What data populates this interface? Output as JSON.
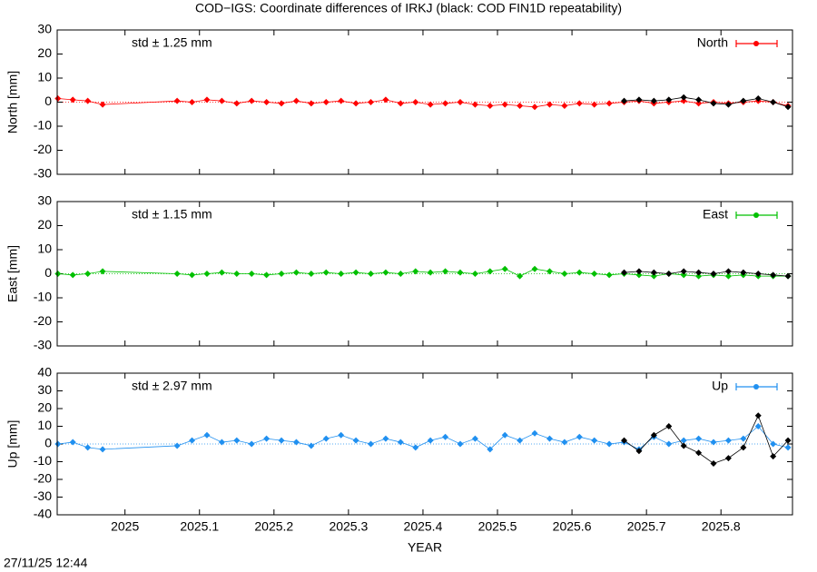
{
  "title": "COD−IGS: Coordinate differences of IRKJ (black: COD FIN1D repeatability)",
  "timestamp": "27/11/25 12:44",
  "chart_data": [
    {
      "type": "line",
      "ylabel": "North [mm]",
      "annotation": "std ± 1.25 mm",
      "xlim": [
        2024.909,
        2025.896
      ],
      "xticks": [
        2025,
        2025.1,
        2025.2,
        2025.3,
        2025.4,
        2025.5,
        2025.6,
        2025.7,
        2025.8
      ],
      "ylim": [
        -30,
        30
      ],
      "yticks": [
        -30,
        -20,
        -10,
        0,
        10,
        20,
        30
      ],
      "series": [
        {
          "name": "North",
          "color": "#ff0000",
          "x": [
            2024.91,
            2024.93,
            2024.95,
            2024.97,
            2025.07,
            2025.09,
            2025.11,
            2025.13,
            2025.15,
            2025.17,
            2025.19,
            2025.21,
            2025.23,
            2025.25,
            2025.27,
            2025.29,
            2025.31,
            2025.33,
            2025.35,
            2025.37,
            2025.39,
            2025.41,
            2025.43,
            2025.45,
            2025.47,
            2025.49,
            2025.51,
            2025.53,
            2025.55,
            2025.57,
            2025.59,
            2025.61,
            2025.63,
            2025.65,
            2025.67,
            2025.69,
            2025.71,
            2025.73,
            2025.75,
            2025.77,
            2025.79,
            2025.81,
            2025.83,
            2025.85,
            2025.87,
            2025.89
          ],
          "values": [
            1.5,
            1,
            0.5,
            -1,
            0.5,
            0,
            1,
            0.5,
            -0.5,
            0.5,
            0,
            -0.5,
            0.5,
            -0.5,
            0,
            0.5,
            -0.5,
            0,
            1,
            -0.5,
            0,
            -1,
            -0.5,
            0,
            -1,
            -1.5,
            -1,
            -1.5,
            -2,
            -1,
            -1.5,
            -0.5,
            -1,
            -0.5,
            0,
            0.5,
            -0.5,
            0,
            0.5,
            -0.5,
            0,
            -0.5,
            0,
            0.5,
            0,
            -1.5
          ]
        },
        {
          "color": "#000000",
          "x": [
            2025.67,
            2025.69,
            2025.71,
            2025.73,
            2025.75,
            2025.77,
            2025.79,
            2025.81,
            2025.83,
            2025.85,
            2025.87,
            2025.89
          ],
          "values": [
            0.5,
            1,
            0.5,
            1,
            2,
            1,
            -0.5,
            -1,
            0.5,
            1.5,
            0,
            -2
          ]
        }
      ]
    },
    {
      "type": "line",
      "ylabel": "East [mm]",
      "annotation": "std ± 1.15 mm",
      "xlim": [
        2024.909,
        2025.896
      ],
      "xticks": [
        2025,
        2025.1,
        2025.2,
        2025.3,
        2025.4,
        2025.5,
        2025.6,
        2025.7,
        2025.8
      ],
      "ylim": [
        -30,
        30
      ],
      "yticks": [
        -30,
        -20,
        -10,
        0,
        10,
        20,
        30
      ],
      "series": [
        {
          "name": "East",
          "color": "#00c000",
          "x": [
            2024.91,
            2024.93,
            2024.95,
            2024.97,
            2025.07,
            2025.09,
            2025.11,
            2025.13,
            2025.15,
            2025.17,
            2025.19,
            2025.21,
            2025.23,
            2025.25,
            2025.27,
            2025.29,
            2025.31,
            2025.33,
            2025.35,
            2025.37,
            2025.39,
            2025.41,
            2025.43,
            2025.45,
            2025.47,
            2025.49,
            2025.51,
            2025.53,
            2025.55,
            2025.57,
            2025.59,
            2025.61,
            2025.63,
            2025.65,
            2025.67,
            2025.69,
            2025.71,
            2025.73,
            2025.75,
            2025.77,
            2025.79,
            2025.81,
            2025.83,
            2025.85,
            2025.87,
            2025.89
          ],
          "values": [
            0,
            -0.5,
            0,
            1,
            0,
            -0.5,
            0,
            0.5,
            0,
            0,
            -0.5,
            0,
            0.5,
            0,
            0.5,
            0,
            0.5,
            0,
            0.5,
            0,
            1,
            0.5,
            1,
            0.5,
            0,
            1,
            2,
            -1,
            2,
            1,
            0,
            0.5,
            0,
            -0.5,
            0,
            -0.5,
            -1,
            0,
            -0.5,
            -1,
            -0.5,
            -1,
            -0.5,
            -1,
            -1,
            -1
          ]
        },
        {
          "color": "#000000",
          "x": [
            2025.67,
            2025.69,
            2025.71,
            2025.73,
            2025.75,
            2025.77,
            2025.79,
            2025.81,
            2025.83,
            2025.85,
            2025.87,
            2025.89
          ],
          "values": [
            0.5,
            1,
            0.5,
            0,
            1,
            0.5,
            0,
            1,
            0.5,
            0,
            -0.5,
            -1
          ]
        }
      ]
    },
    {
      "type": "line",
      "ylabel": "Up [mm]",
      "annotation": "std ± 2.97 mm",
      "xlabel": "YEAR",
      "xlim": [
        2024.909,
        2025.896
      ],
      "xticks": [
        2025,
        2025.1,
        2025.2,
        2025.3,
        2025.4,
        2025.5,
        2025.6,
        2025.7,
        2025.8
      ],
      "ylim": [
        -40,
        40
      ],
      "yticks": [
        -40,
        -30,
        -20,
        -10,
        0,
        10,
        20,
        30,
        40
      ],
      "series": [
        {
          "name": "Up",
          "color": "#2090f0",
          "x": [
            2024.91,
            2024.93,
            2024.95,
            2024.97,
            2025.07,
            2025.09,
            2025.11,
            2025.13,
            2025.15,
            2025.17,
            2025.19,
            2025.21,
            2025.23,
            2025.25,
            2025.27,
            2025.29,
            2025.31,
            2025.33,
            2025.35,
            2025.37,
            2025.39,
            2025.41,
            2025.43,
            2025.45,
            2025.47,
            2025.49,
            2025.51,
            2025.53,
            2025.55,
            2025.57,
            2025.59,
            2025.61,
            2025.63,
            2025.65,
            2025.67,
            2025.69,
            2025.71,
            2025.73,
            2025.75,
            2025.77,
            2025.79,
            2025.81,
            2025.83,
            2025.85,
            2025.87,
            2025.89
          ],
          "values": [
            0,
            1,
            -2,
            -3,
            -1,
            2,
            5,
            1,
            2,
            0,
            3,
            2,
            1,
            -1,
            3,
            5,
            2,
            0,
            3,
            1,
            -2,
            2,
            4,
            0,
            3,
            -3,
            5,
            2,
            6,
            3,
            1,
            4,
            2,
            0,
            1,
            -3,
            4,
            0,
            2,
            3,
            1,
            2,
            3,
            10,
            0,
            -2
          ]
        },
        {
          "color": "#000000",
          "x": [
            2025.67,
            2025.69,
            2025.71,
            2025.73,
            2025.75,
            2025.77,
            2025.79,
            2025.81,
            2025.83,
            2025.85,
            2025.87,
            2025.89
          ],
          "values": [
            2,
            -4,
            5,
            10,
            -1,
            -5,
            -11,
            -8,
            -2,
            16,
            -7,
            2
          ]
        }
      ]
    }
  ]
}
